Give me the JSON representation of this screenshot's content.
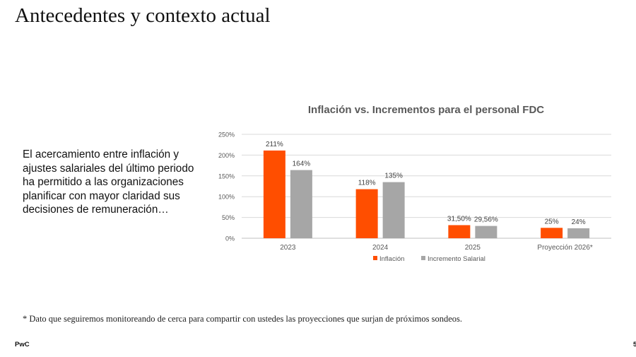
{
  "slide": {
    "title": "Antecedentes y contexto actual",
    "body": "El acercamiento entre inflación y ajustes salariales del último periodo ha permitido a las organizaciones planificar con mayor claridad sus decisiones de remuneración…",
    "footnote": "* Dato que seguiremos monitoreando de cerca para compartir con ustedes las proyecciones que surjan de próximos sondeos.",
    "brand": "PwC",
    "page_number": "5"
  },
  "chart_data": {
    "type": "bar",
    "title": "Inflación vs. Incrementos para el personal FDC",
    "categories": [
      "2023",
      "2024",
      "2025",
      "Proyección 2026*"
    ],
    "series": [
      {
        "name": "Inflación",
        "color": "#FF4E00",
        "values": [
          211,
          118,
          31.5,
          25
        ],
        "labels": [
          "211%",
          "118%",
          "31,50%",
          "25%"
        ]
      },
      {
        "name": "Incremento Salarial",
        "color": "#A6A6A6",
        "values": [
          164,
          135,
          29.56,
          24
        ],
        "labels": [
          "164%",
          "135%",
          "29,56%",
          "24%"
        ]
      }
    ],
    "ylim": [
      0,
      250
    ],
    "yticks": [
      0,
      50,
      100,
      150,
      200,
      250
    ],
    "ytick_labels": [
      "0%",
      "50%",
      "100%",
      "150%",
      "200%",
      "250%"
    ],
    "grid": true,
    "legend": "bottom"
  }
}
